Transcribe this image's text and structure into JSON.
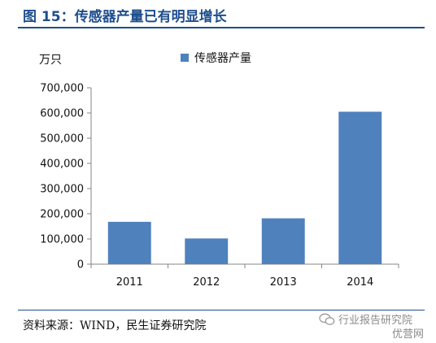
{
  "figure": {
    "title": "图 15：传感器产量已有明显增长",
    "source": "资料来源：WIND，民生证券研究院"
  },
  "watermark": {
    "line1": "行业报告研究院",
    "line2": "优营网",
    "icon": "wechat-icon"
  },
  "chart_data": {
    "type": "bar",
    "unit_label": "万只",
    "categories": [
      "2011",
      "2012",
      "2013",
      "2014"
    ],
    "series": [
      {
        "name": "传感器产量",
        "values": [
          168000,
          102000,
          182000,
          605000
        ]
      }
    ],
    "ylim": [
      0,
      700000
    ],
    "yticks": [
      0,
      100000,
      200000,
      300000,
      400000,
      500000,
      600000,
      700000
    ],
    "ytick_labels": [
      "0",
      "100,000",
      "200,000",
      "300,000",
      "400,000",
      "500,000",
      "600,000",
      "700,000"
    ],
    "grid": false,
    "legend_position": "top-center",
    "bar_color": "#4f81bd"
  }
}
